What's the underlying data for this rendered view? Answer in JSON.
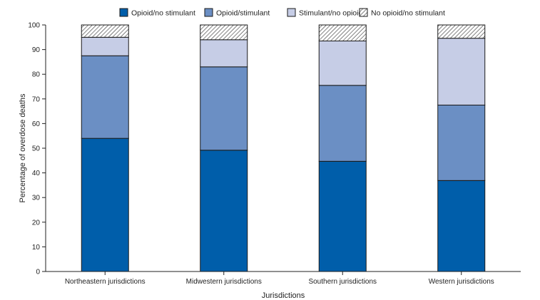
{
  "chart_data": {
    "type": "bar",
    "stacked": true,
    "title": "",
    "xlabel": "Jurisdictions",
    "ylabel": "Percentage of overdose deaths",
    "ylim": [
      0,
      100
    ],
    "yticks": [
      0,
      10,
      20,
      30,
      40,
      50,
      60,
      70,
      80,
      90,
      100
    ],
    "grid": false,
    "legend_position": "top",
    "categories": [
      "Northeastern jurisdictions",
      "Midwestern jurisdictions",
      "Southern jurisdictions",
      "Western jurisdictions"
    ],
    "series": [
      {
        "name": "Opioid/no stimulant",
        "color": "#005eaa",
        "pattern": "solid",
        "values": [
          54.0,
          49.2,
          44.7,
          36.9
        ]
      },
      {
        "name": "Opioid/stimulant",
        "color": "#6b8fc4",
        "pattern": "solid",
        "values": [
          33.5,
          33.8,
          30.8,
          30.6
        ]
      },
      {
        "name": "Stimulant/no opioid",
        "color": "#c6cde6",
        "pattern": "solid",
        "values": [
          7.5,
          11.0,
          18.0,
          27.1
        ]
      },
      {
        "name": "No opioid/no stimulant",
        "color": "#ffffff",
        "pattern": "hatch",
        "values": [
          5.0,
          6.0,
          6.5,
          5.4
        ]
      }
    ]
  }
}
